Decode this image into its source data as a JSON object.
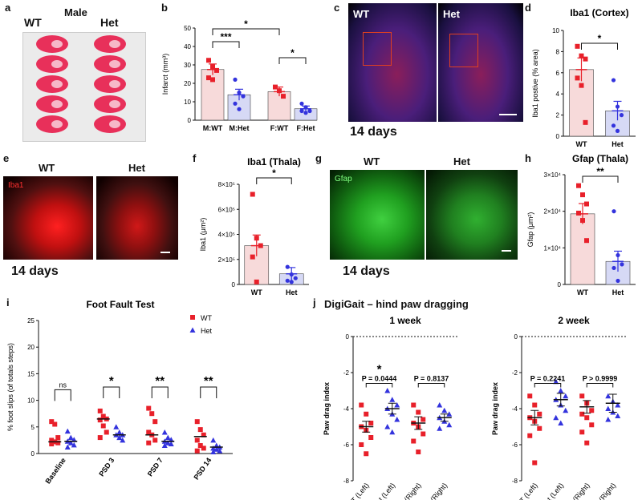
{
  "colors": {
    "wt": "#e8202a",
    "het": "#3333dd",
    "wt_fill": "#f7dada",
    "het_fill": "#d6d9f5",
    "axis": "#111111"
  },
  "panel_a": {
    "letter": "a",
    "title": "Male",
    "wt": "WT",
    "het": "Het"
  },
  "panel_b": {
    "letter": "b",
    "ylabel": "Infarct (mm³)",
    "yticks": [
      "0",
      "10",
      "20",
      "30",
      "40",
      "50"
    ],
    "chart_data": {
      "type": "bar",
      "categories": [
        "M:WT",
        "M:Het",
        "F:WT",
        "F:Het"
      ],
      "means": [
        27.5,
        13.8,
        15.5,
        6.2
      ],
      "sem": [
        3,
        3,
        2.5,
        1.5
      ],
      "points": [
        [
          32.5,
          29,
          27,
          23,
          22
        ],
        [
          22,
          15,
          13,
          9,
          6
        ],
        [
          18,
          16,
          13
        ],
        [
          9,
          7,
          5,
          5,
          4
        ]
      ],
      "ylim": [
        0,
        50
      ],
      "sig": [
        "***",
        "*",
        "*"
      ]
    }
  },
  "panel_c": {
    "letter": "c",
    "wt": "WT",
    "het": "Het",
    "caption": "14 days"
  },
  "panel_d": {
    "letter": "d",
    "title": "Iba1 (Cortex)",
    "ylabel": "Iba1 postive (% area)",
    "yticks": [
      "0",
      "2",
      "4",
      "6",
      "8",
      "10"
    ],
    "chart_data": {
      "type": "bar",
      "categories": [
        "WT",
        "Het"
      ],
      "means": [
        6.3,
        2.4
      ],
      "sem": [
        1.1,
        0.9
      ],
      "points": [
        [
          8.5,
          7.6,
          7.3,
          5.5,
          4.8,
          1.3
        ],
        [
          5.3,
          2.8,
          2.0,
          1.0,
          0.5
        ]
      ],
      "ylim": [
        0,
        10
      ],
      "sig": [
        "*"
      ]
    }
  },
  "panel_e": {
    "letter": "e",
    "wt": "WT",
    "het": "Het",
    "marker": "Iba1",
    "caption": "14 days"
  },
  "panel_f": {
    "letter": "f",
    "title": "Iba1 (Thala)",
    "ylabel": "Iba1 (μm²)",
    "yticks": [
      "0",
      "2×10⁵",
      "4×10⁵",
      "6×10⁵",
      "8×10⁵"
    ],
    "chart_data": {
      "type": "bar",
      "categories": [
        "WT",
        "Het"
      ],
      "means": [
        310000,
        85000
      ],
      "sem": [
        85000,
        50000
      ],
      "points": [
        [
          720000,
          370000,
          310000,
          220000,
          20000
        ],
        [
          140000,
          80000,
          50000,
          30000,
          20000
        ]
      ],
      "ylim": [
        0,
        800000
      ],
      "sig": [
        "*"
      ]
    }
  },
  "panel_g": {
    "letter": "g",
    "wt": "WT",
    "het": "Het",
    "marker": "Gfap",
    "caption": "14 days"
  },
  "panel_h": {
    "letter": "h",
    "title": "Gfap (Thala)",
    "ylabel": "Gfap (μm²)",
    "yticks": [
      "0",
      "1×10⁴",
      "2×10⁴",
      "3×10⁴"
    ],
    "chart_data": {
      "type": "bar",
      "categories": [
        "WT",
        "Het"
      ],
      "means": [
        19300,
        6300
      ],
      "sem": [
        2800,
        2800
      ],
      "points": [
        [
          27000,
          24500,
          22000,
          19500,
          17500,
          12000
        ],
        [
          20000,
          8000,
          5500,
          4500,
          1000
        ]
      ],
      "ylim": [
        0,
        30000
      ],
      "sig": [
        "**"
      ]
    }
  },
  "panel_i": {
    "letter": "i",
    "title": "Foot Fault Test",
    "ylabel": "% foot slips (of totals steps)",
    "yticks": [
      "0",
      "5",
      "10",
      "15",
      "20",
      "25"
    ],
    "legend": {
      "wt": "WT",
      "het": "Het"
    },
    "chart_data": {
      "type": "scatter",
      "categories": [
        "Baseline",
        "PSD 3",
        "PSD 7",
        "PSD 14"
      ],
      "wt_median": [
        2.2,
        6.5,
        3.5,
        3.2
      ],
      "het_median": [
        2.3,
        3.5,
        2.3,
        1.2
      ],
      "wt_points": [
        [
          6,
          5.5,
          3,
          2.5,
          2,
          1.8,
          1.5
        ],
        [
          8,
          7,
          6.5,
          6.2,
          5,
          4,
          3
        ]
      ],
      "sig": [
        "ns",
        "*",
        "**",
        "**"
      ],
      "ylim": [
        0,
        25
      ]
    }
  },
  "panel_j": {
    "letter": "j",
    "title": "DigiGait – hind paw dragging",
    "ylabel": "Paw drag index",
    "yticks": [
      "0",
      "-2",
      "-4",
      "-6",
      "-8"
    ],
    "categories": [
      "WT (Left)",
      "Het (Left)",
      "WT (Right)",
      "Het (Right)"
    ],
    "charts": [
      {
        "subtitle": "1 week",
        "means": [
          -5.0,
          -4.0,
          -4.8,
          -4.5
        ],
        "sem": [
          0.3,
          0.3,
          0.35,
          0.2
        ],
        "p_left": "P = 0.0444",
        "p_left_star": "*",
        "p_right": "P = 0.8137"
      },
      {
        "subtitle": "2 week",
        "means": [
          -4.5,
          -3.5,
          -3.9,
          -3.7
        ],
        "sem": [
          0.4,
          0.35,
          0.35,
          0.5
        ],
        "p_left": "P = 0.2241",
        "p_left_star": "",
        "p_right": "P > 0.9999"
      }
    ],
    "ylim": [
      -8,
      0
    ]
  }
}
